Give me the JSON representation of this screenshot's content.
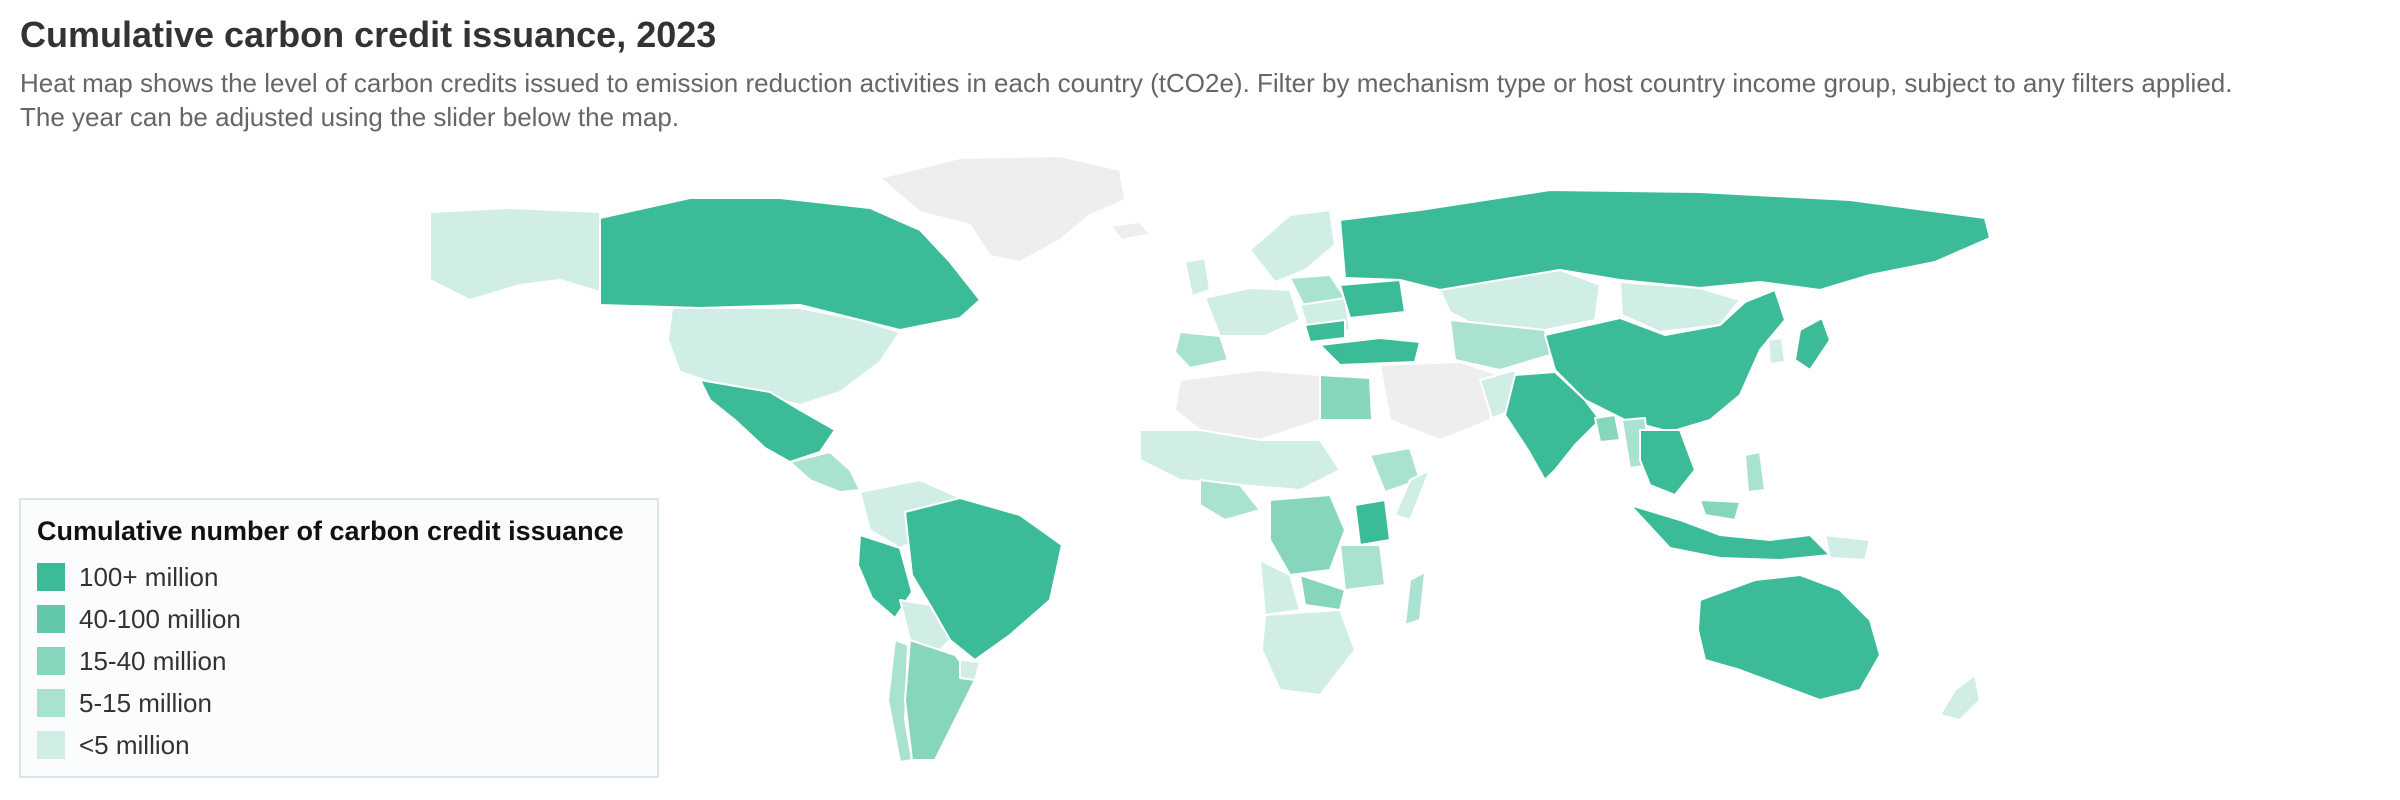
{
  "header": {
    "title": "Cumulative carbon credit issuance, 2023",
    "subtitle": "Heat map shows the level of carbon credits issued to emission reduction activities in each country (tCO2e). Filter by mechanism type or host country income group, subject to any filters applied. The year can be adjusted using the slider below the map."
  },
  "legend": {
    "title": "Cumulative number of carbon credit issuance",
    "items": [
      {
        "label": "100+ million",
        "color": "#3bbb98"
      },
      {
        "label": "40-100 million",
        "color": "#62c8aa"
      },
      {
        "label": "15-40 million",
        "color": "#86d5bd"
      },
      {
        "label": "5-15 million",
        "color": "#aae2d2"
      },
      {
        "label": "<5 million",
        "color": "#d1eee6"
      }
    ]
  },
  "colors": {
    "no_data": "#eeeeee",
    "border": "#ffffff"
  }
}
